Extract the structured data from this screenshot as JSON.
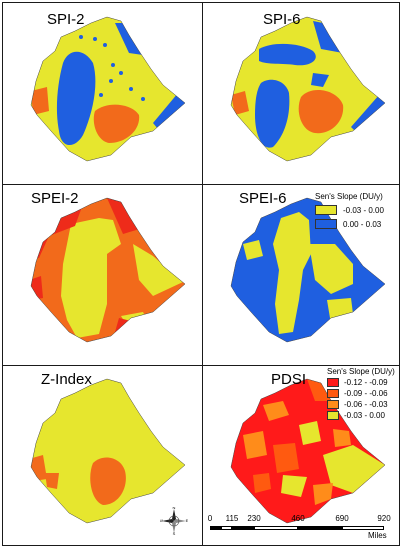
{
  "panels": [
    {
      "id": "spi2",
      "title": "SPI-2"
    },
    {
      "id": "spi6",
      "title": "SPI-6"
    },
    {
      "id": "spei2",
      "title": "SPEI-2"
    },
    {
      "id": "spei6",
      "title": "SPEI-6"
    },
    {
      "id": "zindex",
      "title": "Z-Index"
    },
    {
      "id": "pdsi",
      "title": "PDSI"
    }
  ],
  "legend_spi": {
    "title": "Sen's Slope (DU/y)",
    "items": [
      {
        "label": "-0.03 - 0.00",
        "color": "#e6e62e"
      },
      {
        "label": "0.00 - 0.03",
        "color": "#1f5fe0"
      }
    ]
  },
  "legend_pdsi": {
    "title": "Sen's Slope (DU/y)",
    "items": [
      {
        "label": "-0.12 - -0.09",
        "color": "#ff1a1a"
      },
      {
        "label": "-0.09 - -0.06",
        "color": "#ff5a10"
      },
      {
        "label": "-0.06 - -0.03",
        "color": "#ff8c1a"
      },
      {
        "label": "-0.03 - 0.00",
        "color": "#e6e62e"
      }
    ]
  },
  "scale_bar": {
    "ticks": [
      "0",
      "115",
      "230",
      "460",
      "690",
      "920"
    ],
    "unit": "Miles"
  },
  "compass": {
    "labels": [
      "N",
      "E",
      "S",
      "W"
    ]
  },
  "colors": {
    "yellow": "#e6e62e",
    "blue": "#1f5fe0",
    "red": "#ee2b1a",
    "orange": "#f26a1b"
  }
}
